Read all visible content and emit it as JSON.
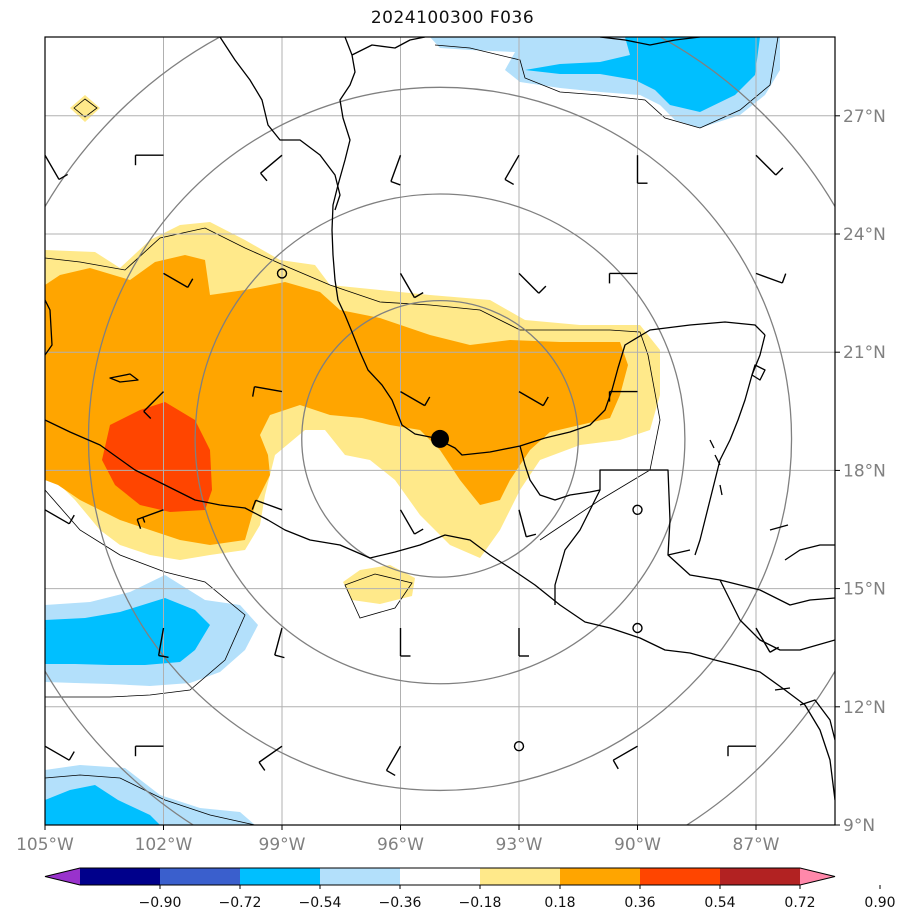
{
  "title": "2024100300 F036",
  "map": {
    "lon_range": [
      -105,
      -85
    ],
    "lat_range": [
      9,
      29
    ],
    "lon_ticks": [
      {
        "value": -105,
        "label": "105°W"
      },
      {
        "value": -102,
        "label": "102°W"
      },
      {
        "value": -99,
        "label": "99°W"
      },
      {
        "value": -96,
        "label": "96°W"
      },
      {
        "value": -93,
        "label": "93°W"
      },
      {
        "value": -90,
        "label": "90°W"
      },
      {
        "value": -87,
        "label": "87°W"
      }
    ],
    "lat_ticks": [
      {
        "value": 9,
        "label": "9°N"
      },
      {
        "value": 12,
        "label": "12°N"
      },
      {
        "value": 15,
        "label": "15°N"
      },
      {
        "value": 18,
        "label": "18°N"
      },
      {
        "value": 21,
        "label": "21°N"
      },
      {
        "value": 24,
        "label": "24°N"
      },
      {
        "value": 27,
        "label": "27°N"
      }
    ],
    "center_marker": {
      "lon": -95.0,
      "lat": 18.8
    },
    "range_rings_deg": [
      3.5,
      6.2,
      8.9,
      11.6
    ],
    "colors": {
      "coast": "#000000",
      "grid": "#b0b0b0",
      "rings": "#808080",
      "neg_light": "#b3e0fb",
      "neg_mid": "#00bfff",
      "pos_light": "#ffe98a",
      "pos_mid": "#ffa500",
      "pos_high": "#ff4500"
    }
  },
  "colorbar": {
    "labels": [
      "−0.90",
      "−0.72",
      "−0.54",
      "−0.36",
      "−0.18",
      "0.18",
      "0.36",
      "0.54",
      "0.72",
      "0.90"
    ],
    "colors": [
      "#9932cc",
      "#00008b",
      "#3a5fcd",
      "#00bfff",
      "#b3e0fb",
      "#ffffff",
      "#ffe98a",
      "#ffa500",
      "#ff4500",
      "#b22222",
      "#ff88aa"
    ]
  },
  "calm_circles": [
    {
      "lon": -99.0,
      "lat": 23.0
    },
    {
      "lon": -90.0,
      "lat": 17.0
    },
    {
      "lon": -90.0,
      "lat": 14.0
    },
    {
      "lon": -93.0,
      "lat": 11.0
    }
  ],
  "wind_barbs": [
    {
      "lon": -105,
      "lat": 26,
      "dir": 150,
      "knots": 10
    },
    {
      "lon": -102,
      "lat": 26,
      "dir": 270,
      "knots": 10
    },
    {
      "lon": -99,
      "lat": 26,
      "dir": 230,
      "knots": 10
    },
    {
      "lon": -96,
      "lat": 26,
      "dir": 200,
      "knots": 10
    },
    {
      "lon": -93,
      "lat": 26,
      "dir": 210,
      "knots": 10
    },
    {
      "lon": -90,
      "lat": 26,
      "dir": 180,
      "knots": 10
    },
    {
      "lon": -87,
      "lat": 26,
      "dir": 135,
      "knots": 10
    },
    {
      "lon": -102,
      "lat": 23,
      "dir": 120,
      "knots": 10
    },
    {
      "lon": -96,
      "lat": 23,
      "dir": 150,
      "knots": 10
    },
    {
      "lon": -93,
      "lat": 23,
      "dir": 135,
      "knots": 10
    },
    {
      "lon": -90,
      "lat": 23,
      "dir": 270,
      "knots": 10
    },
    {
      "lon": -87,
      "lat": 23,
      "dir": 110,
      "knots": 10
    },
    {
      "lon": -105,
      "lat": 20,
      "dir": 225,
      "knots": 10
    },
    {
      "lon": -102,
      "lat": 20,
      "dir": 225,
      "knots": 10
    },
    {
      "lon": -99,
      "lat": 20,
      "dir": 280,
      "knots": 10
    },
    {
      "lon": -96,
      "lat": 20,
      "dir": 120,
      "knots": 10
    },
    {
      "lon": -93,
      "lat": 20,
      "dir": 120,
      "knots": 10
    },
    {
      "lon": -90,
      "lat": 20,
      "dir": 270,
      "knots": 10
    },
    {
      "lon": -105,
      "lat": 17,
      "dir": 120,
      "knots": 10
    },
    {
      "lon": -102,
      "lat": 17,
      "dir": 250,
      "knots": 15
    },
    {
      "lon": -99,
      "lat": 17,
      "dir": 290,
      "knots": 10
    },
    {
      "lon": -96,
      "lat": 17,
      "dir": 150,
      "knots": 10
    },
    {
      "lon": -93,
      "lat": 17,
      "dir": 165,
      "knots": 10
    },
    {
      "lon": -105,
      "lat": 14,
      "dir": 200,
      "knots": 10
    },
    {
      "lon": -102,
      "lat": 14,
      "dir": 190,
      "knots": 10
    },
    {
      "lon": -99,
      "lat": 14,
      "dir": 195,
      "knots": 10
    },
    {
      "lon": -96,
      "lat": 14,
      "dir": 180,
      "knots": 10
    },
    {
      "lon": -93,
      "lat": 14,
      "dir": 180,
      "knots": 10
    },
    {
      "lon": -87,
      "lat": 14,
      "dir": 150,
      "knots": 10
    },
    {
      "lon": -105,
      "lat": 11,
      "dir": 120,
      "knots": 10
    },
    {
      "lon": -102,
      "lat": 11,
      "dir": 270,
      "knots": 10
    },
    {
      "lon": -99,
      "lat": 11,
      "dir": 235,
      "knots": 10
    },
    {
      "lon": -96,
      "lat": 11,
      "dir": 210,
      "knots": 10
    },
    {
      "lon": -90,
      "lat": 11,
      "dir": 240,
      "knots": 10
    },
    {
      "lon": -87,
      "lat": 11,
      "dir": 270,
      "knots": 10
    }
  ]
}
